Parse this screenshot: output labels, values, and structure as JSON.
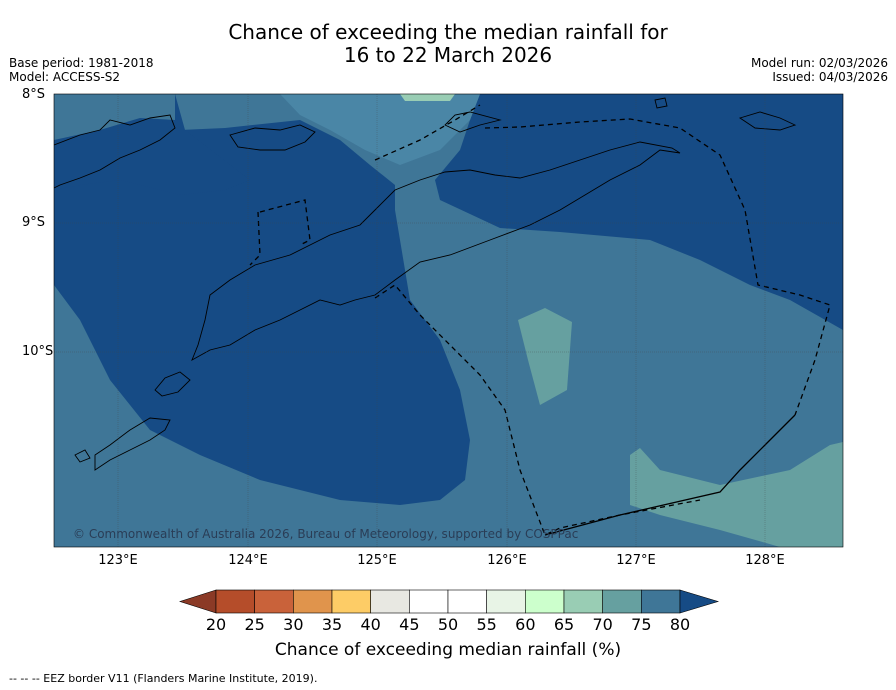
{
  "title": {
    "line1": "Chance of exceeding the median rainfall for",
    "line2": "16 to 22 March 2026"
  },
  "meta": {
    "base_period": "Base period: 1981-2018",
    "model": "Model: ACCESS-S2",
    "model_run": "Model run: 02/03/2026",
    "issued": "Issued: 04/03/2026"
  },
  "axes": {
    "lat_labels": [
      "8°S",
      "9°S",
      "10°S"
    ],
    "lon_labels": [
      "123°E",
      "124°E",
      "125°E",
      "126°E",
      "127°E",
      "128°E"
    ]
  },
  "copyright": "© Commonwealth of Australia 2026, Bureau of Meteorology, supported by COSPPac",
  "colorbar": {
    "ticks": [
      "20",
      "25",
      "30",
      "35",
      "40",
      "45",
      "50",
      "55",
      "60",
      "65",
      "70",
      "75",
      "80"
    ],
    "colors": [
      "#b54d2a",
      "#c9623a",
      "#e0944c",
      "#fdcc66",
      "#e8e8e2",
      "#ffffff",
      "#ffffff",
      "#e8f4e6",
      "#ccffcc",
      "#99cdb4",
      "#66a0a0",
      "#3f7697"
    ],
    "under_color": "#8b3a26",
    "over_color": "#164b85",
    "label": "Chance of exceeding median rainfall (%)"
  },
  "footer": "--  --  -- EEZ border V11 (Flanders Marine Institute, 2019)."
}
